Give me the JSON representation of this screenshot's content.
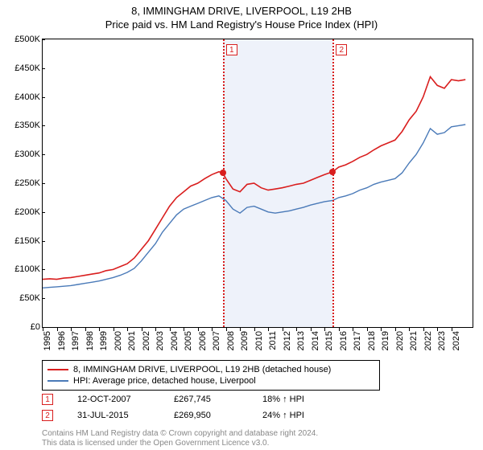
{
  "title_line1": "8, IMMINGHAM DRIVE, LIVERPOOL, L19 2HB",
  "title_line2": "Price paid vs. HM Land Registry's House Price Index (HPI)",
  "chart": {
    "type": "line",
    "background_color": "#ffffff",
    "plot_border_color": "#000000",
    "ylabel_prefix": "£",
    "ylim": [
      0,
      500000
    ],
    "ytick_step": 50000,
    "yticks": [
      "£0",
      "£50K",
      "£100K",
      "£150K",
      "£200K",
      "£250K",
      "£300K",
      "£350K",
      "£400K",
      "£450K",
      "£500K"
    ],
    "xlim": [
      1995,
      2025.5
    ],
    "xticks": [
      1995,
      1996,
      1997,
      1998,
      1999,
      2000,
      2001,
      2002,
      2003,
      2004,
      2005,
      2006,
      2007,
      2008,
      2009,
      2010,
      2011,
      2012,
      2013,
      2014,
      2015,
      2016,
      2017,
      2018,
      2019,
      2020,
      2021,
      2022,
      2023,
      2024
    ],
    "band": {
      "xstart": 2007.78,
      "xend": 2015.58,
      "color": "#eef2fa"
    },
    "series": [
      {
        "name": "property",
        "color": "#d91e1e",
        "line_width": 1.6,
        "points": [
          [
            1995.0,
            83000
          ],
          [
            1995.5,
            84000
          ],
          [
            1996.0,
            83000
          ],
          [
            1996.5,
            85000
          ],
          [
            1997.0,
            86000
          ],
          [
            1997.5,
            88000
          ],
          [
            1998.0,
            90000
          ],
          [
            1998.5,
            92000
          ],
          [
            1999.0,
            94000
          ],
          [
            1999.5,
            98000
          ],
          [
            2000.0,
            100000
          ],
          [
            2000.5,
            105000
          ],
          [
            2001.0,
            110000
          ],
          [
            2001.5,
            120000
          ],
          [
            2002.0,
            135000
          ],
          [
            2002.5,
            150000
          ],
          [
            2003.0,
            170000
          ],
          [
            2003.5,
            190000
          ],
          [
            2004.0,
            210000
          ],
          [
            2004.5,
            225000
          ],
          [
            2005.0,
            235000
          ],
          [
            2005.5,
            245000
          ],
          [
            2006.0,
            250000
          ],
          [
            2006.5,
            258000
          ],
          [
            2007.0,
            265000
          ],
          [
            2007.5,
            270000
          ],
          [
            2007.78,
            267745
          ],
          [
            2008.0,
            258000
          ],
          [
            2008.5,
            240000
          ],
          [
            2009.0,
            235000
          ],
          [
            2009.5,
            248000
          ],
          [
            2010.0,
            250000
          ],
          [
            2010.5,
            242000
          ],
          [
            2011.0,
            238000
          ],
          [
            2011.5,
            240000
          ],
          [
            2012.0,
            242000
          ],
          [
            2012.5,
            245000
          ],
          [
            2013.0,
            248000
          ],
          [
            2013.5,
            250000
          ],
          [
            2014.0,
            255000
          ],
          [
            2014.5,
            260000
          ],
          [
            2015.0,
            265000
          ],
          [
            2015.58,
            269950
          ],
          [
            2016.0,
            278000
          ],
          [
            2016.5,
            282000
          ],
          [
            2017.0,
            288000
          ],
          [
            2017.5,
            295000
          ],
          [
            2018.0,
            300000
          ],
          [
            2018.5,
            308000
          ],
          [
            2019.0,
            315000
          ],
          [
            2019.5,
            320000
          ],
          [
            2020.0,
            325000
          ],
          [
            2020.5,
            340000
          ],
          [
            2021.0,
            360000
          ],
          [
            2021.5,
            375000
          ],
          [
            2022.0,
            400000
          ],
          [
            2022.5,
            435000
          ],
          [
            2023.0,
            420000
          ],
          [
            2023.5,
            415000
          ],
          [
            2024.0,
            430000
          ],
          [
            2024.5,
            428000
          ],
          [
            2025.0,
            430000
          ]
        ]
      },
      {
        "name": "hpi",
        "color": "#4a7ab8",
        "line_width": 1.4,
        "points": [
          [
            1995.0,
            68000
          ],
          [
            1995.5,
            69000
          ],
          [
            1996.0,
            70000
          ],
          [
            1996.5,
            71000
          ],
          [
            1997.0,
            72000
          ],
          [
            1997.5,
            74000
          ],
          [
            1998.0,
            76000
          ],
          [
            1998.5,
            78000
          ],
          [
            1999.0,
            80000
          ],
          [
            1999.5,
            83000
          ],
          [
            2000.0,
            86000
          ],
          [
            2000.5,
            90000
          ],
          [
            2001.0,
            95000
          ],
          [
            2001.5,
            102000
          ],
          [
            2002.0,
            115000
          ],
          [
            2002.5,
            130000
          ],
          [
            2003.0,
            145000
          ],
          [
            2003.5,
            165000
          ],
          [
            2004.0,
            180000
          ],
          [
            2004.5,
            195000
          ],
          [
            2005.0,
            205000
          ],
          [
            2005.5,
            210000
          ],
          [
            2006.0,
            215000
          ],
          [
            2006.5,
            220000
          ],
          [
            2007.0,
            225000
          ],
          [
            2007.5,
            228000
          ],
          [
            2008.0,
            220000
          ],
          [
            2008.5,
            205000
          ],
          [
            2009.0,
            198000
          ],
          [
            2009.5,
            208000
          ],
          [
            2010.0,
            210000
          ],
          [
            2010.5,
            205000
          ],
          [
            2011.0,
            200000
          ],
          [
            2011.5,
            198000
          ],
          [
            2012.0,
            200000
          ],
          [
            2012.5,
            202000
          ],
          [
            2013.0,
            205000
          ],
          [
            2013.5,
            208000
          ],
          [
            2014.0,
            212000
          ],
          [
            2014.5,
            215000
          ],
          [
            2015.0,
            218000
          ],
          [
            2015.58,
            220000
          ],
          [
            2016.0,
            225000
          ],
          [
            2016.5,
            228000
          ],
          [
            2017.0,
            232000
          ],
          [
            2017.5,
            238000
          ],
          [
            2018.0,
            242000
          ],
          [
            2018.5,
            248000
          ],
          [
            2019.0,
            252000
          ],
          [
            2019.5,
            255000
          ],
          [
            2020.0,
            258000
          ],
          [
            2020.5,
            268000
          ],
          [
            2021.0,
            285000
          ],
          [
            2021.5,
            300000
          ],
          [
            2022.0,
            320000
          ],
          [
            2022.5,
            345000
          ],
          [
            2023.0,
            335000
          ],
          [
            2023.5,
            338000
          ],
          [
            2024.0,
            348000
          ],
          [
            2024.5,
            350000
          ],
          [
            2025.0,
            352000
          ]
        ]
      }
    ],
    "event_markers": [
      {
        "n": "1",
        "x": 2007.78,
        "y": 267745,
        "color": "#d91e1e"
      },
      {
        "n": "2",
        "x": 2015.58,
        "y": 269950,
        "color": "#d91e1e"
      }
    ]
  },
  "legend": {
    "items": [
      {
        "color": "#d91e1e",
        "label": "8, IMMINGHAM DRIVE, LIVERPOOL, L19 2HB (detached house)"
      },
      {
        "color": "#4a7ab8",
        "label": "HPI: Average price, detached house, Liverpool"
      }
    ]
  },
  "events": [
    {
      "n": "1",
      "color": "#d91e1e",
      "date": "12-OCT-2007",
      "price": "£267,745",
      "delta": "18% ↑ HPI"
    },
    {
      "n": "2",
      "color": "#d91e1e",
      "date": "31-JUL-2015",
      "price": "£269,950",
      "delta": "24% ↑ HPI"
    }
  ],
  "footer_line1": "Contains HM Land Registry data © Crown copyright and database right 2024.",
  "footer_line2": "This data is licensed under the Open Government Licence v3.0."
}
